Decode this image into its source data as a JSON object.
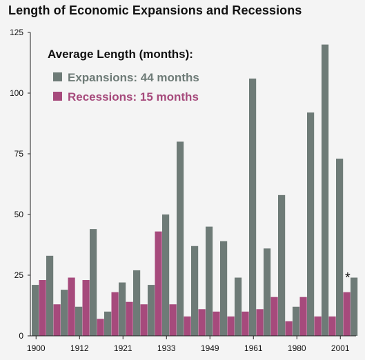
{
  "colors": {
    "expansions": "#6e7b77",
    "recessions": "#a64a7c",
    "axis": "#222222",
    "background": "#f4f4f4"
  },
  "chart_data": {
    "type": "bar",
    "title": "Length of Economic Expansions and Recessions",
    "xlabel": "",
    "ylabel": "",
    "ylim": [
      0,
      125
    ],
    "yticks": [
      0,
      25,
      50,
      75,
      100,
      125
    ],
    "xtick_labels": [
      "1900",
      "1912",
      "1921",
      "1933",
      "1949",
      "1961",
      "1980",
      "2001"
    ],
    "xtick_positions": [
      0,
      3,
      6,
      9,
      12,
      15,
      18,
      21
    ],
    "legend": {
      "title": "Average Length (months):",
      "entries": [
        "Expansions: 44 months",
        "Recessions: 15 months"
      ],
      "placement": "top-left"
    },
    "annotations": [
      {
        "text": "*",
        "target": "last expansion bar"
      }
    ],
    "series": [
      {
        "name": "Expansions",
        "values": [
          21,
          33,
          19,
          12,
          44,
          10,
          22,
          27,
          21,
          50,
          80,
          37,
          45,
          39,
          24,
          106,
          36,
          58,
          12,
          92,
          120,
          73,
          24
        ]
      },
      {
        "name": "Recessions",
        "values": [
          23,
          13,
          24,
          23,
          7,
          18,
          14,
          13,
          43,
          13,
          8,
          11,
          10,
          8,
          10,
          11,
          16,
          6,
          16,
          8,
          8,
          18,
          null
        ]
      }
    ],
    "bar_order": [
      "E0",
      "R0",
      "E1",
      "R1",
      "E2",
      "R2",
      "E3",
      "R3",
      "E4",
      "R4",
      "E5",
      "R5",
      "E6",
      "R6",
      "E7",
      "R7",
      "E8",
      "R8",
      "E9",
      "R9",
      "E10",
      "R10",
      "E11",
      "R11",
      "E12",
      "R12",
      "E13",
      "R13",
      "E14",
      "R14",
      "E15",
      "R15",
      "E16",
      "R16",
      "E17",
      "R17",
      "E18",
      "R18",
      "E19",
      "R19",
      "E20",
      "R20",
      "E21",
      "R21",
      "E22"
    ]
  }
}
